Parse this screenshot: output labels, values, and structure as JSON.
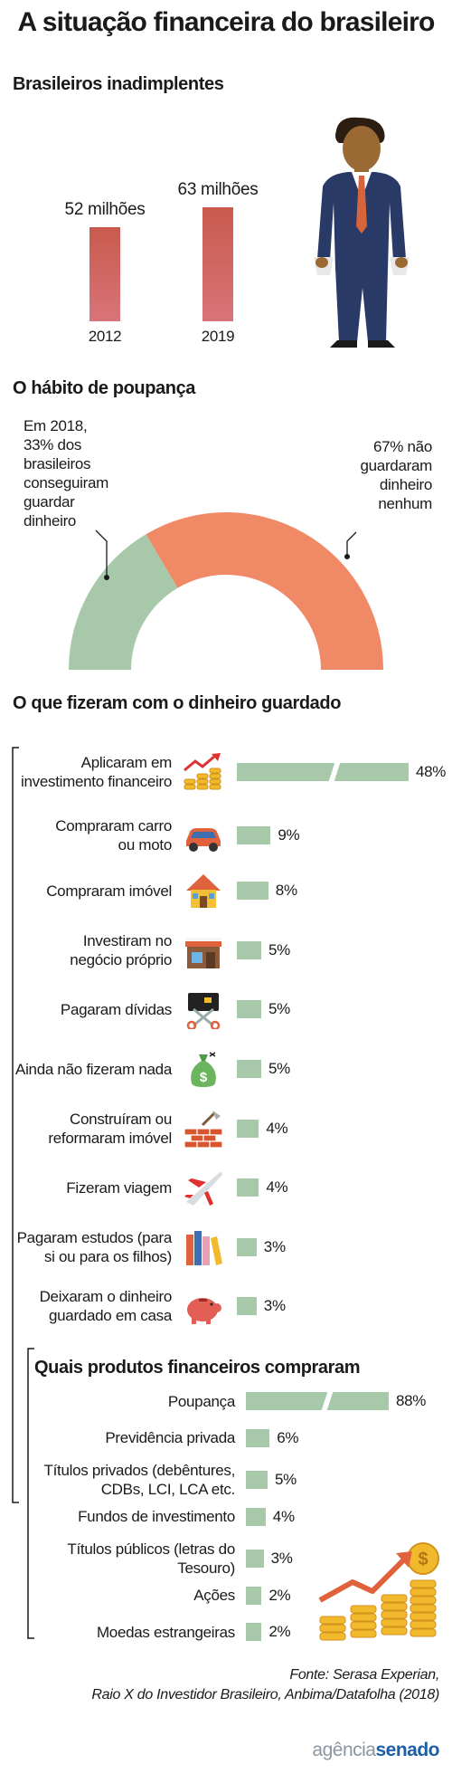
{
  "title": "A situação financeira do brasileiro",
  "chart_data": [
    {
      "type": "bar",
      "title": "Brasileiros inadimplentes",
      "categories": [
        "2012",
        "2019"
      ],
      "values": [
        52,
        63
      ],
      "value_labels": [
        "52 milhões",
        "63 milhões"
      ],
      "colors": {
        "bar_top": "#c95a4d",
        "bar_bottom": "#d87479"
      }
    },
    {
      "type": "pie",
      "title": "O hábito de poupança",
      "slices": [
        {
          "label": "Em 2018, 33% dos brasileiros conseguiram guardar dinheiro",
          "value": 33,
          "color": "#a7c9aa"
        },
        {
          "label": "67% não guardaram dinheiro nenhum",
          "value": 67,
          "color": "#f08a66"
        }
      ],
      "label_left_lines": [
        "Em 2018,",
        "33% dos",
        "brasileiros",
        "conseguiram",
        "guardar",
        "dinheiro"
      ],
      "label_right_lines": [
        "67% não",
        "guardaram",
        "dinheiro",
        "nenhum"
      ]
    },
    {
      "type": "bar",
      "orientation": "horizontal",
      "title": "O que fizeram com o dinheiro guardado",
      "color": "#a7c9aa",
      "items": [
        {
          "lines": [
            "Aplicaram em",
            "investimento financeiro"
          ],
          "value": 48,
          "label": "48%",
          "icon": "chart-coins-icon",
          "broken": true
        },
        {
          "lines": [
            "Compraram carro",
            "ou moto"
          ],
          "value": 9,
          "label": "9%",
          "icon": "car-icon"
        },
        {
          "lines": [
            "Compraram imóvel"
          ],
          "value": 8,
          "label": "8%",
          "icon": "house-icon"
        },
        {
          "lines": [
            "Investiram no",
            "negócio próprio"
          ],
          "value": 5,
          "label": "5%",
          "icon": "shop-icon"
        },
        {
          "lines": [
            "Pagaram dívidas"
          ],
          "value": 5,
          "label": "5%",
          "icon": "scissors-card-icon"
        },
        {
          "lines": [
            "Ainda não fizeram nada"
          ],
          "value": 5,
          "label": "5%",
          "icon": "money-bag-icon"
        },
        {
          "lines": [
            "Construíram ou",
            "reformaram imóvel"
          ],
          "value": 4,
          "label": "4%",
          "icon": "bricks-icon"
        },
        {
          "lines": [
            "Fizeram viagem"
          ],
          "value": 4,
          "label": "4%",
          "icon": "airplane-icon"
        },
        {
          "lines": [
            "Pagaram estudos (para",
            "si ou para os filhos)"
          ],
          "value": 3,
          "label": "3%",
          "icon": "books-icon"
        },
        {
          "lines": [
            "Deixaram o dinheiro",
            "guardado em casa"
          ],
          "value": 3,
          "label": "3%",
          "icon": "piggy-bank-icon"
        }
      ]
    },
    {
      "type": "bar",
      "orientation": "horizontal",
      "title": "Quais produtos financeiros compraram",
      "color": "#a7c9aa",
      "items": [
        {
          "lines": [
            "Poupança"
          ],
          "value": 88,
          "label": "88%",
          "broken": true
        },
        {
          "lines": [
            "Previdência privada"
          ],
          "value": 6,
          "label": "6%"
        },
        {
          "lines": [
            "Títulos privados (debêntures,",
            "CDBs, LCI, LCA etc."
          ],
          "value": 5,
          "label": "5%"
        },
        {
          "lines": [
            "Fundos de investimento"
          ],
          "value": 4,
          "label": "4%"
        },
        {
          "lines": [
            "Títulos públicos (letras do",
            "Tesouro)"
          ],
          "value": 3,
          "label": "3%"
        },
        {
          "lines": [
            "Ações"
          ],
          "value": 2,
          "label": "2%"
        },
        {
          "lines": [
            "Moedas estrangeiras"
          ],
          "value": 2,
          "label": "2%"
        }
      ]
    }
  ],
  "source_lines": [
    "Fonte: Serasa Experian,",
    "Raio X do Investidor Brasileiro, Anbima/Datafolha (2018)"
  ],
  "logo": {
    "part1": "agência",
    "part2": "senado"
  }
}
